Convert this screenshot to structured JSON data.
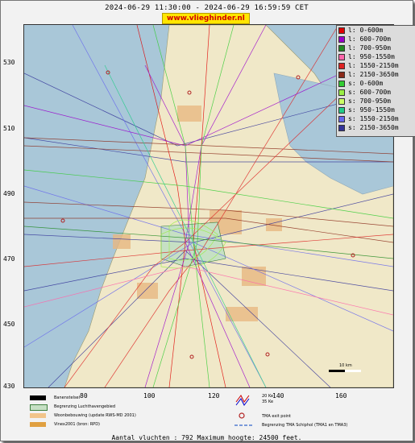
{
  "header": {
    "title": "2024-06-29 11:30:00 - 2024-06-29 16:59:59 CET",
    "site_badge": "www.vlieghinder.nl"
  },
  "map": {
    "y_ticks": [
      "530",
      "510",
      "490",
      "470",
      "450",
      "430"
    ],
    "x_ticks": [
      "80",
      "100",
      "120",
      "140",
      "160"
    ],
    "scale_bar_label": "10 km"
  },
  "legend": {
    "items": [
      {
        "label": "l: 0-600m",
        "color": "#e00000"
      },
      {
        "label": "l: 600-700m",
        "color": "#9900cc"
      },
      {
        "label": "l: 700-950m",
        "color": "#228b22"
      },
      {
        "label": "l: 950-1550m",
        "color": "#ff66aa"
      },
      {
        "label": "l: 1550-2150m",
        "color": "#dd2222"
      },
      {
        "label": "l: 2150-3650m",
        "color": "#8b2a1a"
      },
      {
        "label": "s: 0-600m",
        "color": "#33cc33"
      },
      {
        "label": "s: 600-700m",
        "color": "#99ee44"
      },
      {
        "label": "s: 700-950m",
        "color": "#ccff66"
      },
      {
        "label": "s: 950-1550m",
        "color": "#22cc88"
      },
      {
        "label": "s: 1550-2150m",
        "color": "#6666ee"
      },
      {
        "label": "s: 2150-3650m",
        "color": "#333399"
      }
    ]
  },
  "bottom_legend": {
    "runway": "Banenstelsel",
    "airport_boundary": "Begrenzing Luchthavengebied",
    "housing": "Woonbebouwing (update RWS-MD 2001)",
    "vinex": "Vinex2001 (bron: RPD)",
    "ke20": "20 Ke",
    "ke35": "35 Ke",
    "tma_exit": "TMA exit point",
    "tma_boundary": "Begrenzing TMA Schiphol  (TMA1 en TMA3)"
  },
  "footer": {
    "text": "Aantal vluchten : 792 Maximum hoogte: 24500 feet."
  }
}
